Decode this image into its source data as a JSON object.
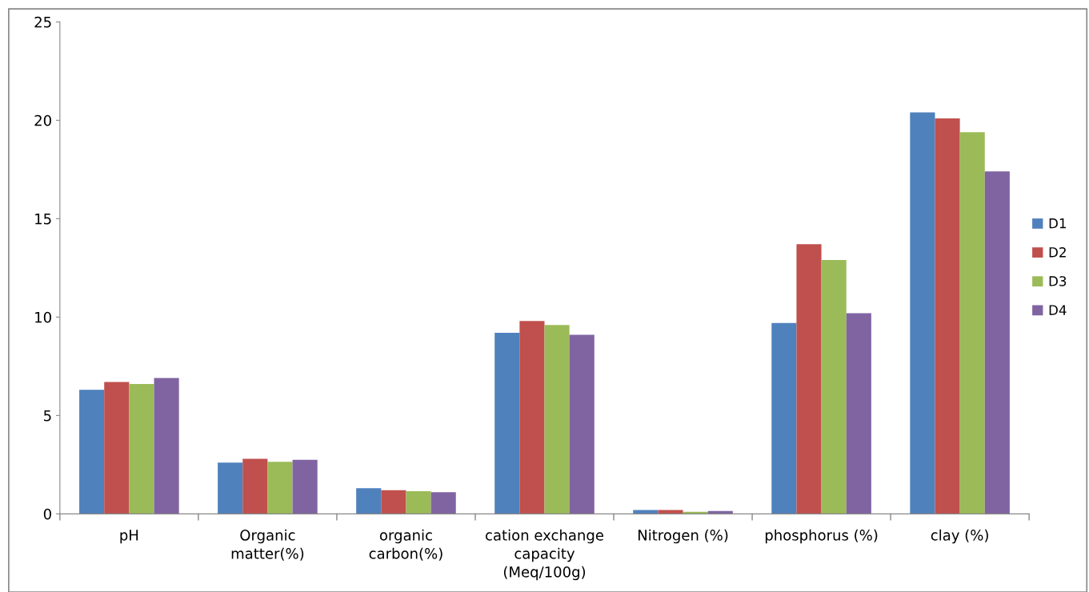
{
  "chart_data": {
    "type": "bar",
    "categories": [
      "pH",
      "Organic\nmatter(%)",
      "organic\ncarbon(%)",
      "cation exchange\ncapacity\n(Meq/100g)",
      "Nitrogen (%)",
      "phosphorus (%)",
      "clay (%)"
    ],
    "series": [
      {
        "name": "D1",
        "color": "#4f81bd",
        "values": [
          6.3,
          2.6,
          1.3,
          9.2,
          0.2,
          9.7,
          20.4
        ]
      },
      {
        "name": "D2",
        "color": "#c0504d",
        "values": [
          6.7,
          2.8,
          1.2,
          9.8,
          0.2,
          13.7,
          20.1
        ]
      },
      {
        "name": "D3",
        "color": "#9bbb59",
        "values": [
          6.6,
          2.65,
          1.15,
          9.6,
          0.1,
          12.9,
          19.4
        ]
      },
      {
        "name": "D4",
        "color": "#8064a2",
        "values": [
          6.9,
          2.75,
          1.1,
          9.1,
          0.15,
          10.2,
          17.4
        ]
      }
    ],
    "ylim": [
      0,
      25
    ],
    "yticks": [
      0,
      5,
      10,
      15,
      20,
      25
    ],
    "grid": false,
    "legend": "right"
  }
}
